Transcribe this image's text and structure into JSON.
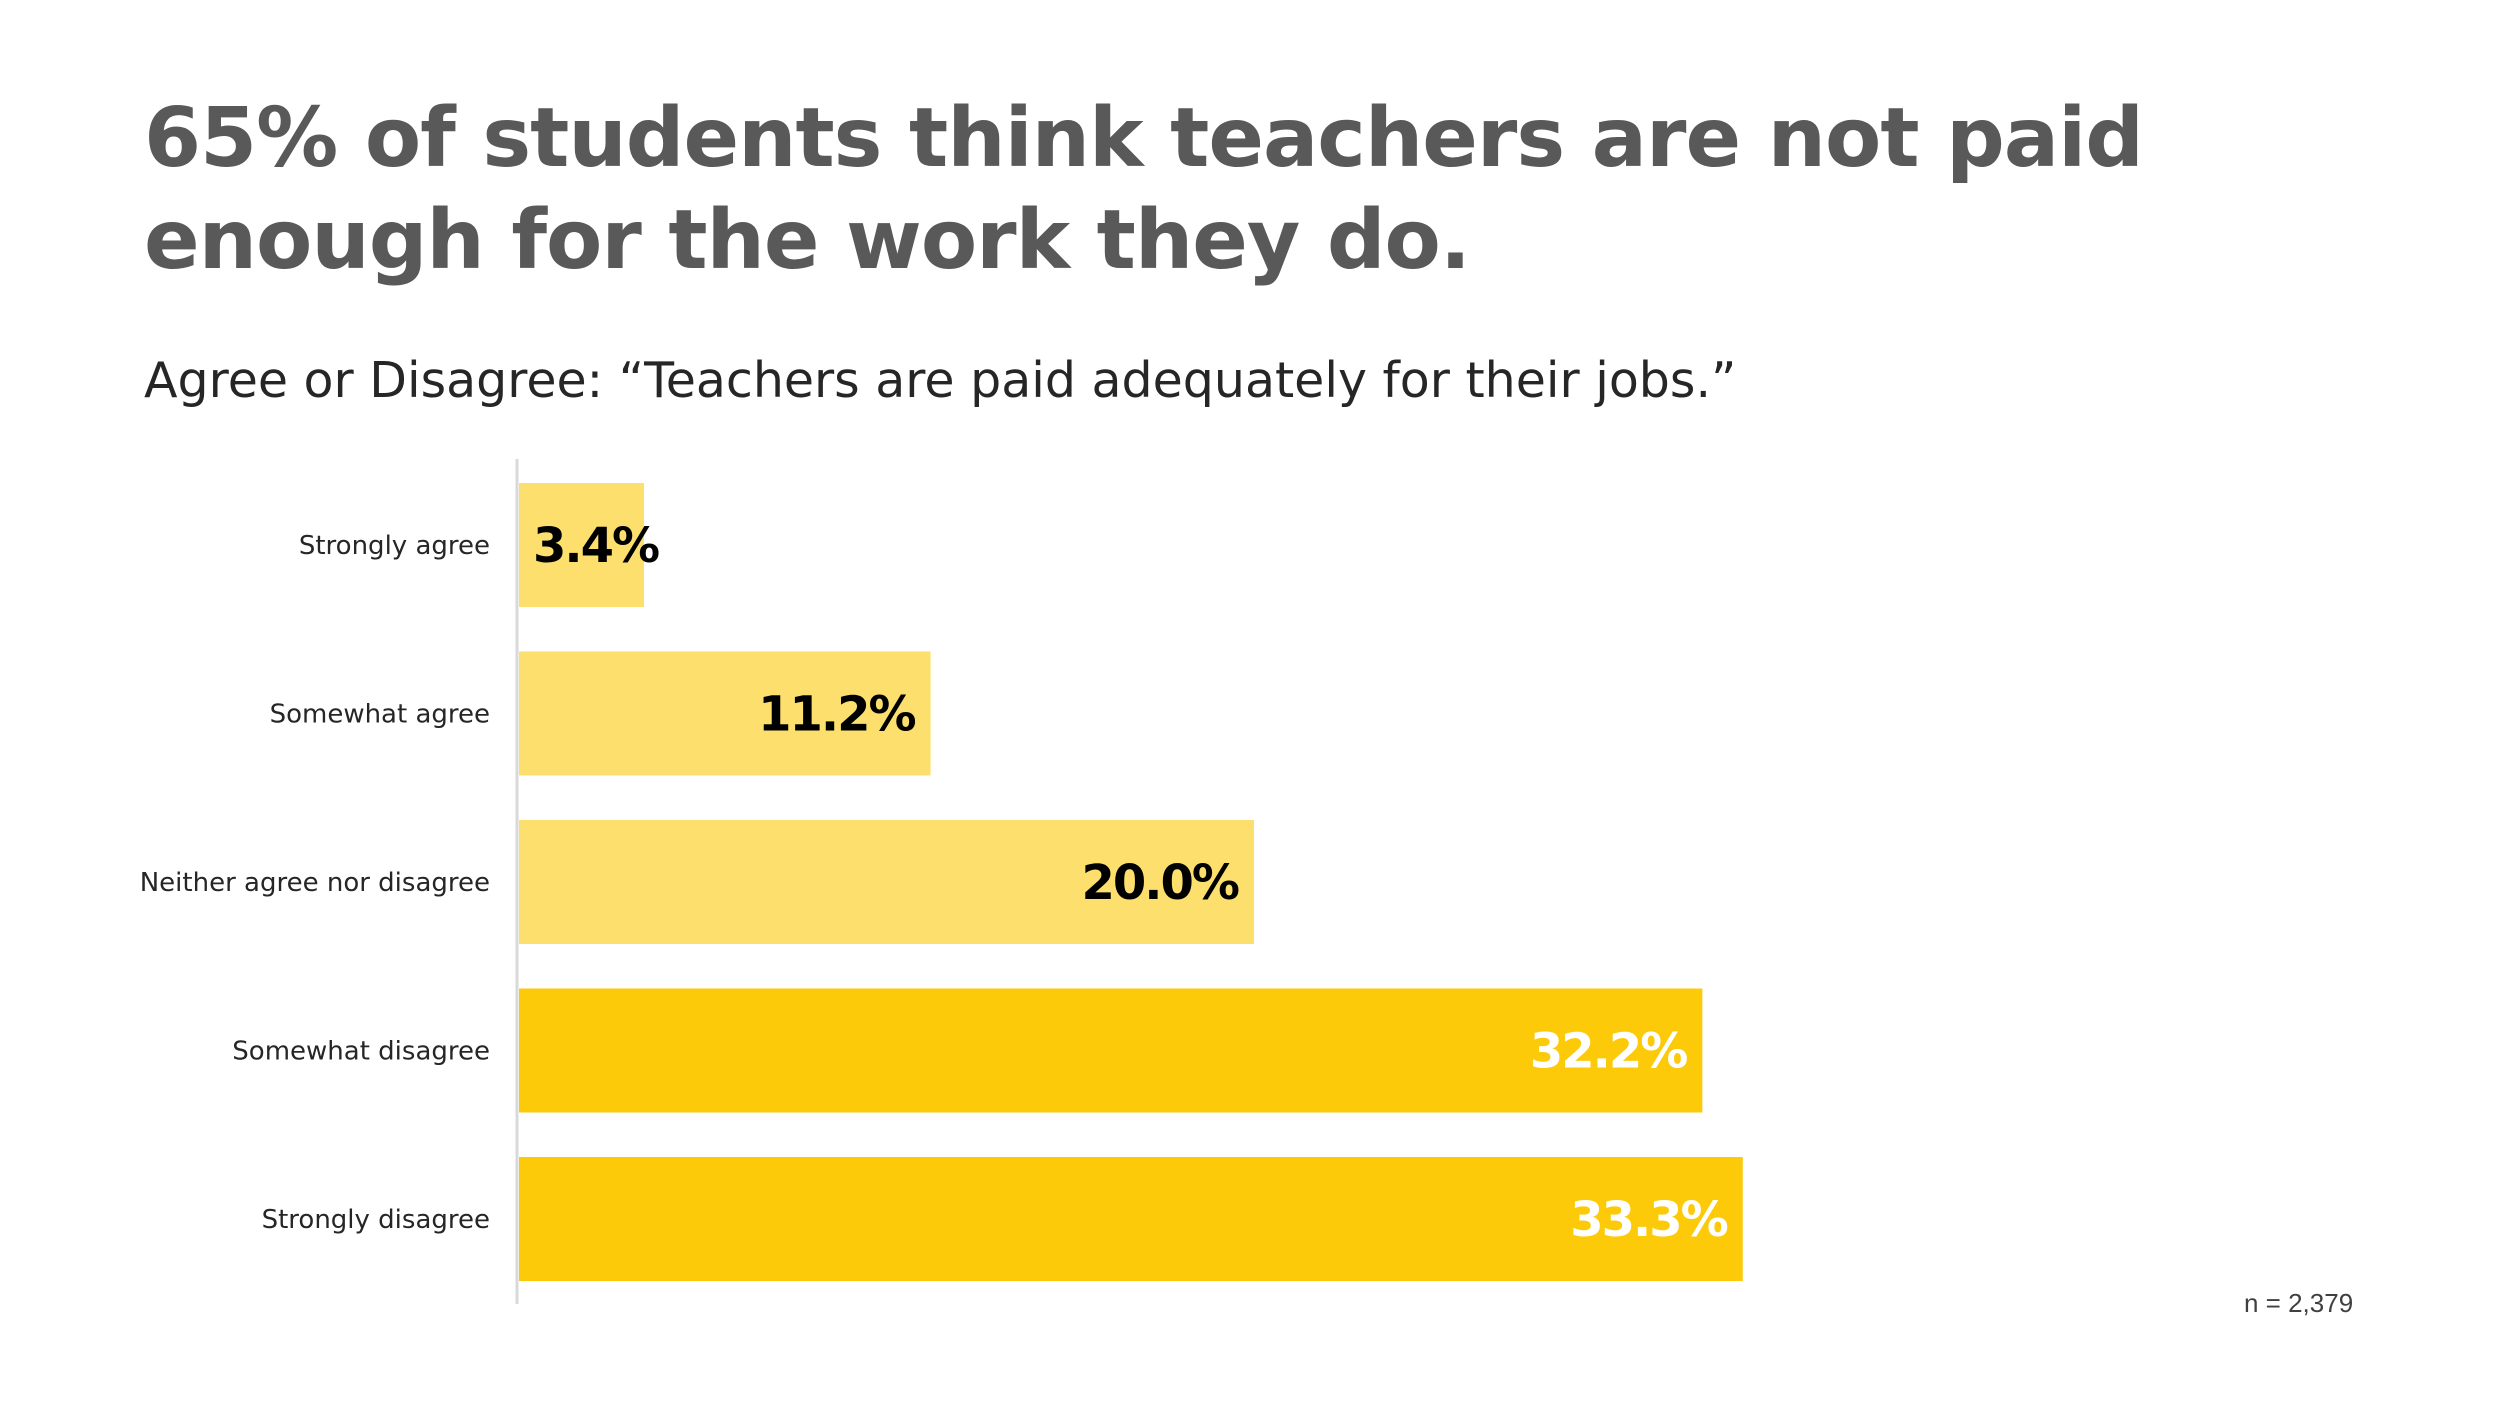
{
  "title": "65% of students think teachers are not paid enough for the work they do.",
  "subtitle": "Agree or Disagree: “Teachers are paid adequately for their jobs.”",
  "note": "n = 2,379",
  "chart_data": {
    "type": "bar",
    "orientation": "horizontal",
    "categories": [
      "Strongly agree",
      "Somewhat agree",
      "Neither agree nor disagree",
      "Somewhat disagree",
      "Strongly disagree"
    ],
    "values": [
      3.4,
      11.2,
      20.0,
      32.2,
      33.3
    ],
    "data_labels": [
      "3.4%",
      "11.2%",
      "20.0%",
      "32.2%",
      "33.3%"
    ],
    "bar_colors": [
      "#FDDF6E",
      "#FDDF6E",
      "#FDDF6E",
      "#FDCA0A",
      "#FDCA0A"
    ],
    "label_colors": [
      "#000000",
      "#000000",
      "#000000",
      "#FFFFFF",
      "#FFFFFF"
    ],
    "xlim": [
      0,
      35
    ],
    "grid": false,
    "legend": "none"
  }
}
